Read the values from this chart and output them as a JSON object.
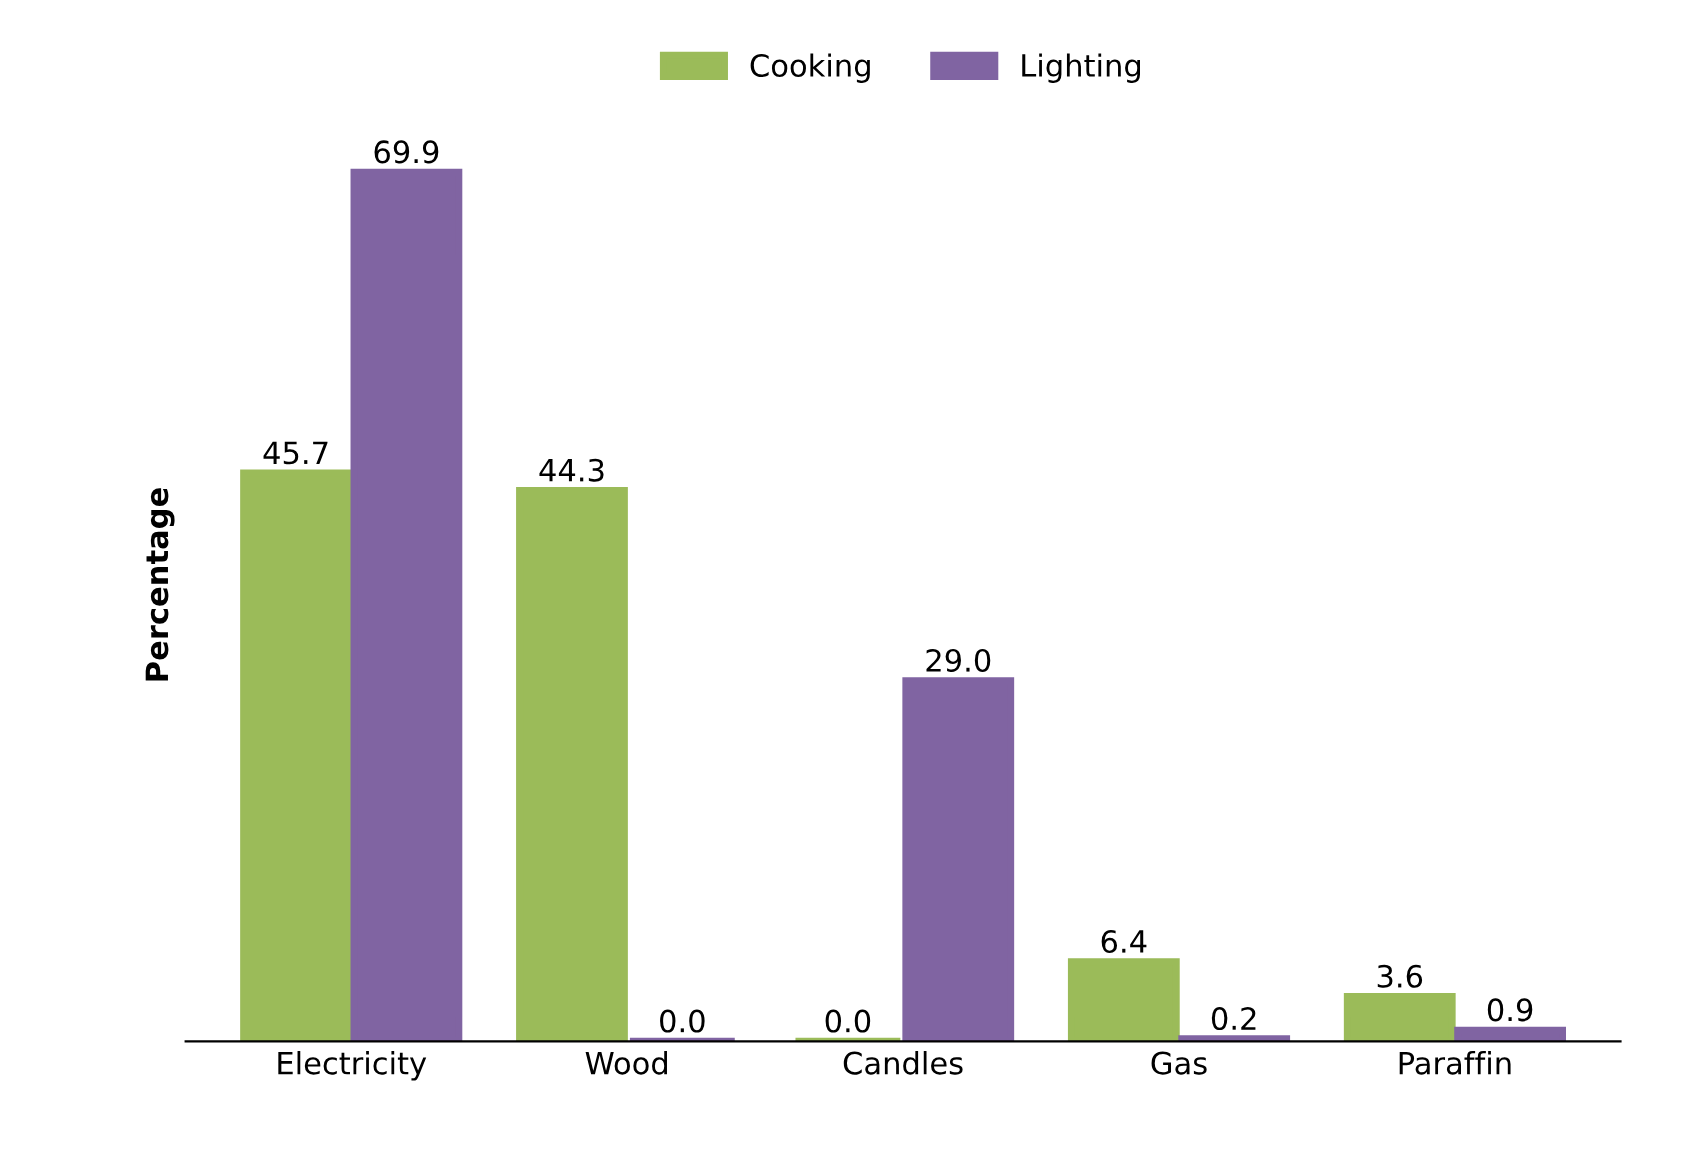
{
  "chart_data": {
    "type": "bar",
    "ylabel": "Percentage",
    "categories": [
      "Electricity",
      "Wood",
      "Candles",
      "Gas",
      "Paraffin"
    ],
    "series": [
      {
        "name": "Cooking",
        "color": "#9bbb59",
        "values": [
          45.7,
          44.3,
          0.0,
          6.4,
          3.6
        ],
        "value_labels": [
          "45.7",
          "44.3",
          "0.0",
          "6.4",
          "3.6"
        ]
      },
      {
        "name": "Lighting",
        "color": "#8064a2",
        "values": [
          69.9,
          0.0,
          29.0,
          0.2,
          0.9
        ],
        "value_labels": [
          "69.9",
          "0.0",
          "29.0",
          "0.2",
          "0.9"
        ]
      }
    ],
    "legend": "top",
    "grid": false
  }
}
